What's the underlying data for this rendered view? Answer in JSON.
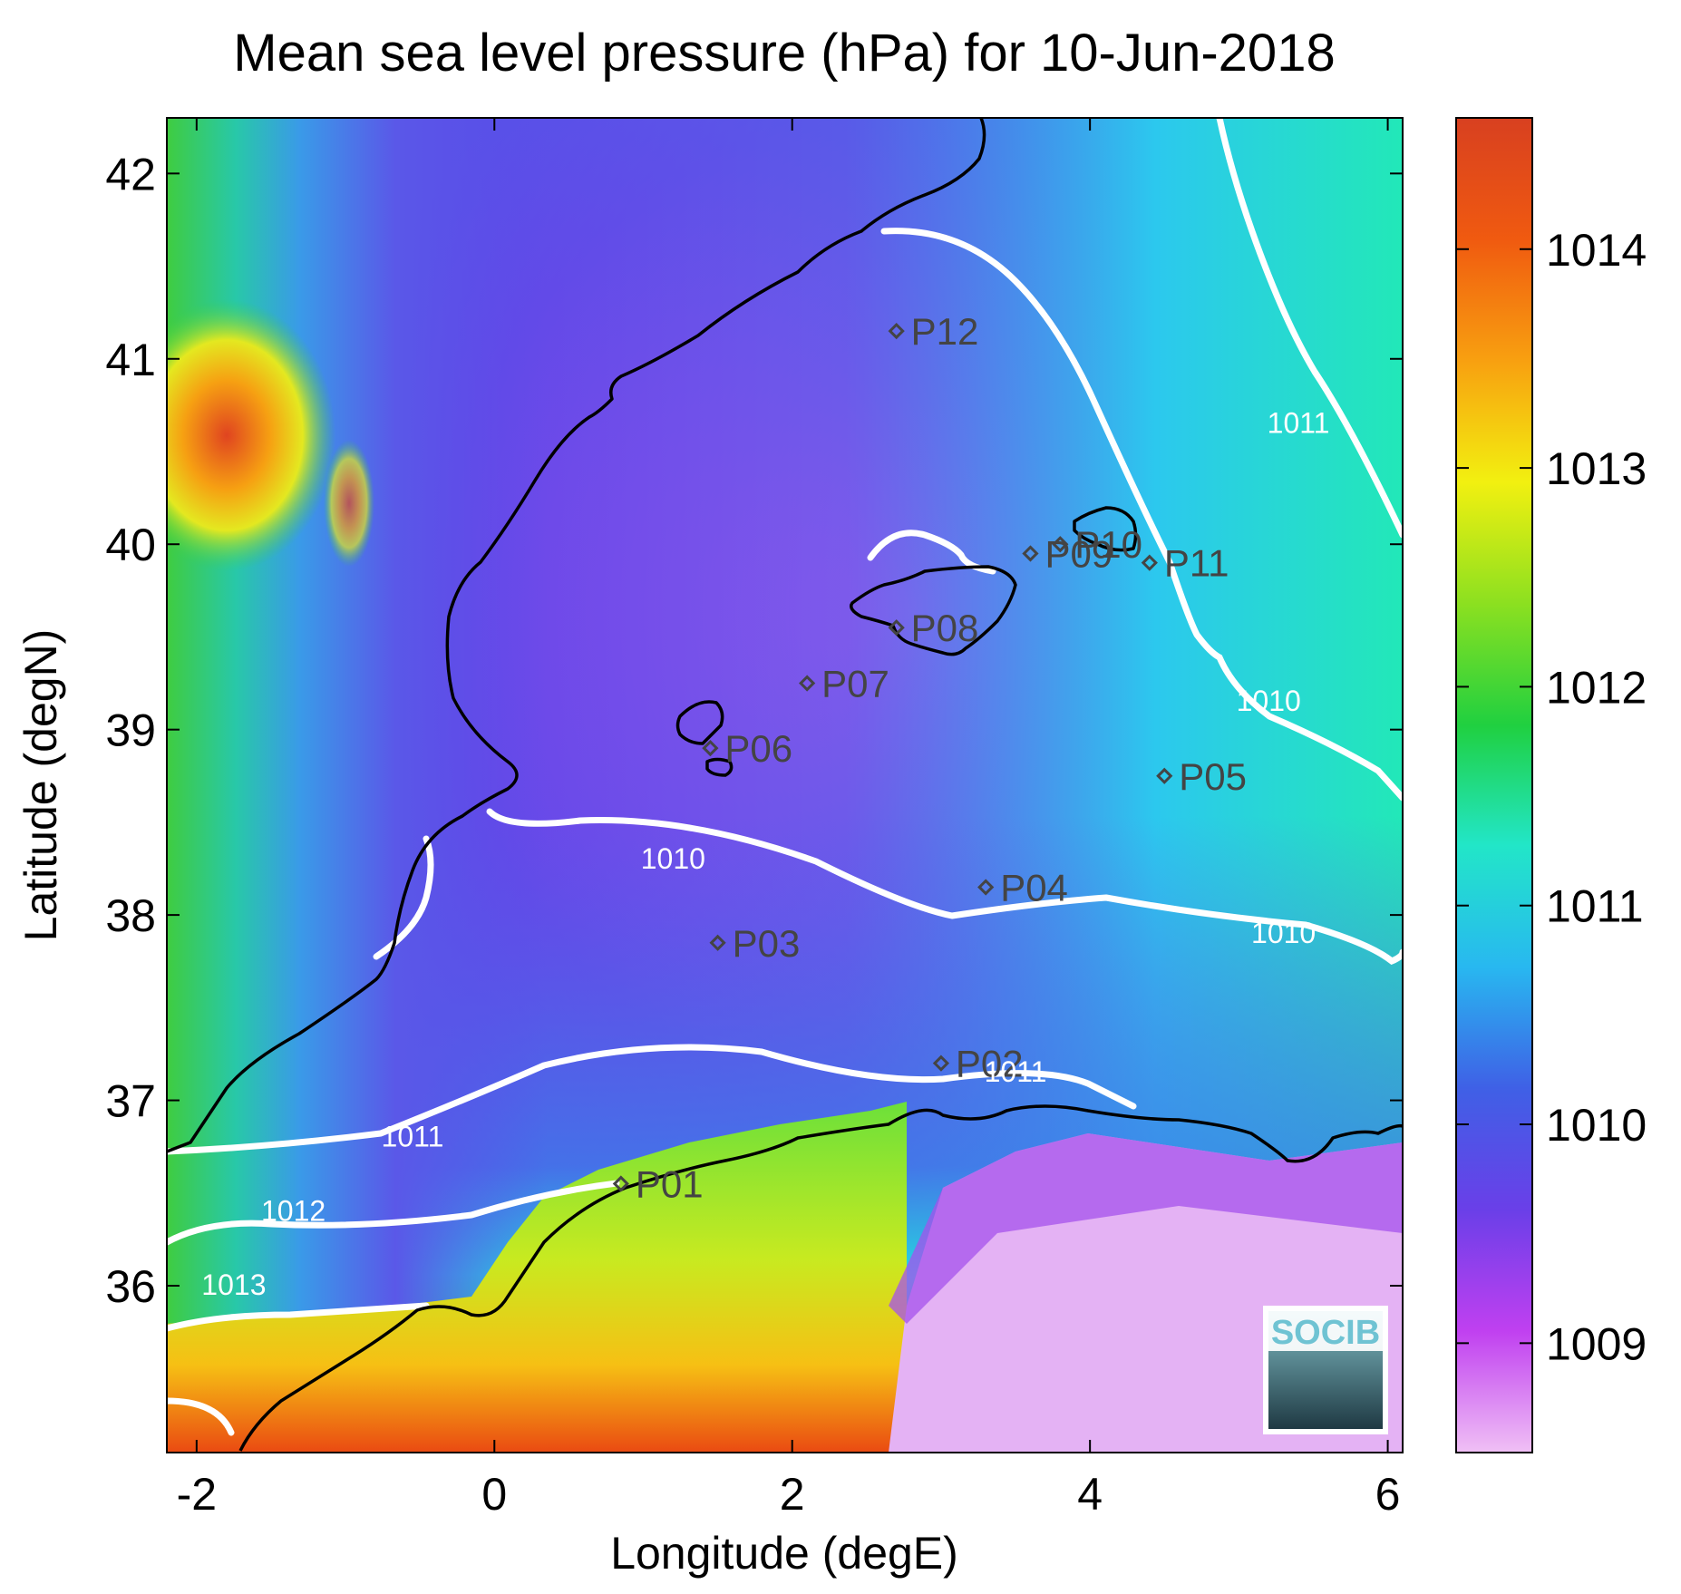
{
  "title": "Mean sea level pressure (hPa) for 10-Jun-2018",
  "axes": {
    "xlabel": "Longitude (degE)",
    "ylabel": "Latitude (degN)",
    "xlim": [
      -2.2,
      6.1
    ],
    "ylim": [
      35.1,
      42.3
    ],
    "xticks": [
      -2,
      0,
      2,
      4,
      6
    ],
    "yticks": [
      36,
      37,
      38,
      39,
      40,
      41,
      42
    ],
    "xtick_labels": [
      "-2",
      "0",
      "2",
      "4",
      "6"
    ],
    "ytick_labels": [
      "36",
      "37",
      "38",
      "39",
      "40",
      "41",
      "42"
    ]
  },
  "colorbar": {
    "range": [
      1008.5,
      1014.6
    ],
    "ticks": [
      1009,
      1010,
      1011,
      1012,
      1013,
      1014
    ],
    "tick_labels": [
      "1009",
      "1010",
      "1011",
      "1012",
      "1013",
      "1014"
    ],
    "colors": [
      "#f0c0f5",
      "#c040f0",
      "#6a3fe8",
      "#3f60e6",
      "#28b8f0",
      "#22e6c8",
      "#20d040",
      "#8ce020",
      "#f2f010",
      "#f8a010",
      "#f05a10",
      "#d84020"
    ]
  },
  "stations": [
    {
      "id": "P01",
      "lon": 0.85,
      "lat": 36.55
    },
    {
      "id": "P02",
      "lon": 3.0,
      "lat": 37.2
    },
    {
      "id": "P03",
      "lon": 1.5,
      "lat": 37.85
    },
    {
      "id": "P04",
      "lon": 3.3,
      "lat": 38.15
    },
    {
      "id": "P05",
      "lon": 4.5,
      "lat": 38.75
    },
    {
      "id": "P06",
      "lon": 1.45,
      "lat": 38.9
    },
    {
      "id": "P07",
      "lon": 2.1,
      "lat": 39.25
    },
    {
      "id": "P08",
      "lon": 2.7,
      "lat": 39.55
    },
    {
      "id": "P09",
      "lon": 3.6,
      "lat": 39.95
    },
    {
      "id": "P10",
      "lon": 3.8,
      "lat": 40.0
    },
    {
      "id": "P11",
      "lon": 4.4,
      "lat": 39.9
    },
    {
      "id": "P12",
      "lon": 2.7,
      "lat": 41.15
    }
  ],
  "contour_labels": [
    {
      "text": "1010",
      "lon": 1.2,
      "lat": 38.25
    },
    {
      "text": "1010",
      "lon": 5.3,
      "lat": 37.85
    },
    {
      "text": "1010",
      "lon": 5.2,
      "lat": 39.1
    },
    {
      "text": "1011",
      "lon": 5.4,
      "lat": 40.6
    },
    {
      "text": "1011",
      "lon": -0.55,
      "lat": 36.75
    },
    {
      "text": "1011",
      "lon": 3.5,
      "lat": 37.1
    },
    {
      "text": "1012",
      "lon": -1.35,
      "lat": 36.35
    },
    {
      "text": "1013",
      "lon": -1.75,
      "lat": 35.95
    }
  ],
  "logo": {
    "text": "SOCIB"
  }
}
